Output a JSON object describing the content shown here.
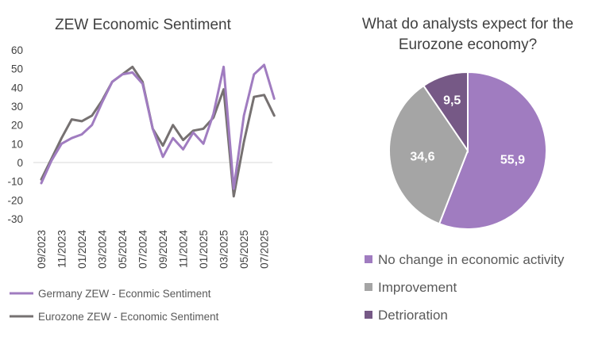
{
  "chart_data": [
    {
      "type": "line",
      "title": "ZEW Economic Sentiment",
      "xlabel": "",
      "ylabel": "",
      "ylim": [
        -30,
        60
      ],
      "yticks": [
        -30,
        -20,
        -10,
        0,
        10,
        20,
        30,
        40,
        50,
        60
      ],
      "x": [
        "09/2023",
        "10/2023",
        "11/2023",
        "12/2023",
        "01/2024",
        "02/2024",
        "03/2024",
        "04/2024",
        "05/2024",
        "06/2024",
        "07/2024",
        "08/2024",
        "09/2024",
        "10/2024",
        "11/2024",
        "12/2024",
        "01/2025",
        "02/2025",
        "03/2025",
        "04/2025",
        "05/2025",
        "06/2025",
        "07/2025",
        "08/2025"
      ],
      "x_tick_labels": [
        "09/2023",
        "11/2023",
        "01/2024",
        "03/2024",
        "05/2024",
        "07/2024",
        "09/2024",
        "11/2024",
        "01/2025",
        "03/2025",
        "05/2025",
        "07/2025"
      ],
      "grid": false,
      "legend_position": "bottom",
      "series": [
        {
          "name": "Germany ZEW - Econmic Sentiment",
          "color": "#a07cc0",
          "values": [
            -11,
            1,
            10,
            13,
            15,
            20,
            32,
            43,
            47,
            48,
            42,
            18,
            3,
            13,
            7,
            16,
            10,
            26,
            51,
            -14,
            25,
            47,
            52,
            34
          ]
        },
        {
          "name": "Eurozone ZEW - Economic Sentiment",
          "color": "#767171",
          "values": [
            -9,
            2,
            13,
            23,
            22,
            25,
            33,
            43,
            47,
            51,
            43,
            18,
            9,
            20,
            12,
            17,
            18,
            24,
            39,
            -18,
            11,
            35,
            36,
            25
          ]
        }
      ]
    },
    {
      "type": "pie",
      "title": "What do analysts expect for the Eurozone economy?",
      "slices": [
        {
          "label": "No change in economic activity",
          "value": 55.9,
          "value_label": "55,9",
          "color": "#a07cc0"
        },
        {
          "label": "Improvement",
          "value": 34.6,
          "value_label": "34,6",
          "color": "#a5a5a5"
        },
        {
          "label": "Detrioration",
          "value": 9.5,
          "value_label": "9,5",
          "color": "#765986"
        }
      ],
      "legend_position": "bottom"
    }
  ]
}
